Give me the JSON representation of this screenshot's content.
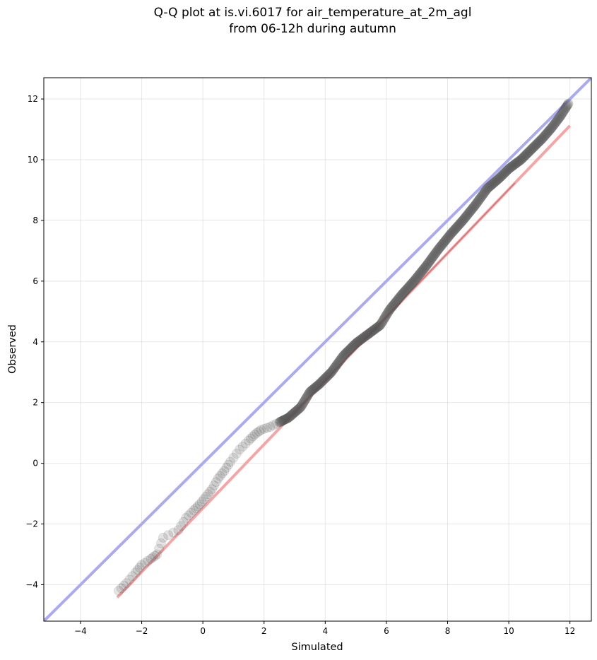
{
  "chart_data": {
    "type": "scatter",
    "title_lines": [
      "Q-Q plot at is.vi.6017 for air_temperature_at_2m_agl",
      "from 06-12h during autumn"
    ],
    "xlabel": "Simulated",
    "ylabel": "Observed",
    "xlim": [
      -5.2,
      12.7
    ],
    "ylim": [
      -5.2,
      12.7
    ],
    "xticks": [
      -4,
      -2,
      0,
      2,
      4,
      6,
      8,
      10,
      12
    ],
    "yticks": [
      -4,
      -2,
      0,
      2,
      4,
      6,
      8,
      10,
      12
    ],
    "xtick_labels": [
      "−4",
      "−2",
      "0",
      "2",
      "4",
      "6",
      "8",
      "10",
      "12"
    ],
    "ytick_labels": [
      "−4",
      "−2",
      "0",
      "2",
      "4",
      "6",
      "8",
      "10",
      "12"
    ],
    "grid": true,
    "reference_line": {
      "name": "1:1 line",
      "color": "#aaaaee",
      "points": [
        [
          -5.2,
          -5.2
        ],
        [
          12.7,
          12.7
        ]
      ]
    },
    "fit_line": {
      "name": "fit",
      "color": "#f4a6a6",
      "points": [
        [
          -2.8,
          -4.42
        ],
        [
          12.0,
          11.12
        ]
      ]
    },
    "marker_color": "#555555",
    "quantile_profile": {
      "x": [
        -2.75,
        -2.5,
        -2.2,
        -2.0,
        -1.7,
        -1.5,
        -1.3,
        -0.8,
        -0.55,
        -0.3,
        -0.1,
        0.1,
        0.3,
        0.5,
        0.7,
        0.9,
        1.2,
        1.5,
        1.7,
        1.9,
        2.2,
        2.5,
        2.8,
        3.2,
        3.5,
        3.8,
        4.2,
        4.6,
        5.0,
        5.4,
        5.8,
        6.1,
        6.5,
        6.9,
        7.3,
        7.7,
        8.1,
        8.5,
        8.9,
        9.3,
        9.7,
        10.0,
        10.4,
        10.8,
        11.1,
        11.4,
        11.7,
        11.95
      ],
      "y": [
        -4.2,
        -3.95,
        -3.6,
        -3.35,
        -3.15,
        -3.0,
        -2.45,
        -2.2,
        -1.8,
        -1.55,
        -1.35,
        -1.1,
        -0.85,
        -0.5,
        -0.25,
        0.05,
        0.45,
        0.75,
        0.95,
        1.1,
        1.2,
        1.35,
        1.5,
        1.85,
        2.35,
        2.6,
        3.0,
        3.55,
        3.95,
        4.25,
        4.55,
        5.05,
        5.55,
        6.0,
        6.5,
        7.05,
        7.55,
        8.0,
        8.5,
        9.05,
        9.4,
        9.7,
        10.0,
        10.4,
        10.7,
        11.05,
        11.45,
        11.85
      ]
    }
  }
}
